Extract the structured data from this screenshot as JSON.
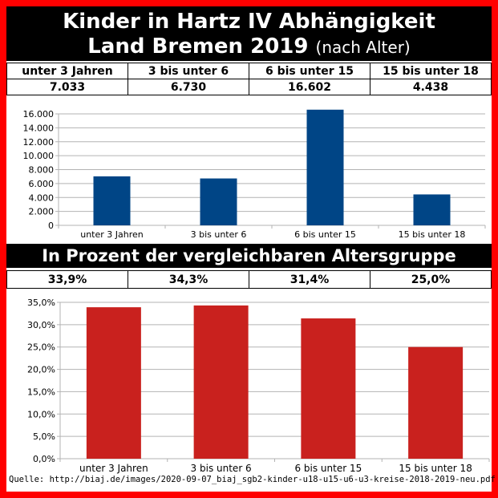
{
  "title": {
    "line1": "Kinder in Hartz IV Abhängigkeit",
    "line2_main": "Land Bremen 2019",
    "line2_sub": "(nach Alter)"
  },
  "section2_title": "In Prozent der vergleichbaren Altersgruppe",
  "table1": {
    "headers": [
      "unter 3 Jahren",
      "3 bis unter 6",
      "6 bis unter 15",
      "15 bis unter 18"
    ],
    "values": [
      "7.033",
      "6.730",
      "16.602",
      "4.438"
    ]
  },
  "table2": {
    "values": [
      "33,9%",
      "34,3%",
      "31,4%",
      "25,0%"
    ]
  },
  "colors": {
    "frame": "#ff0000",
    "header_bg": "#000000",
    "bar_blue": "#004586",
    "bar_red": "#c9211e"
  },
  "source": "Quelle: http://biaj.de/images/2020-09-07_biaj_sgb2-kinder-u18-u15-u6-u3-kreise-2018-2019-neu.pdf",
  "chart_data": [
    {
      "type": "bar",
      "categories": [
        "unter 3 Jahren",
        "3 bis unter 6",
        "6 bis unter 15",
        "15 bis unter 18"
      ],
      "values": [
        7033,
        6730,
        16602,
        4438
      ],
      "ylim": [
        0,
        16000
      ],
      "yticks": [
        0,
        2000,
        4000,
        6000,
        8000,
        10000,
        12000,
        14000,
        16000
      ],
      "ytick_labels": [
        "0",
        "2.000",
        "4.000",
        "6.000",
        "8.000",
        "10.000",
        "12.000",
        "14.000",
        "16.000"
      ],
      "grid": true,
      "color": "#004586"
    },
    {
      "type": "bar",
      "categories": [
        "unter 3 Jahren",
        "3 bis unter 6",
        "6 bis unter 15",
        "15 bis unter 18"
      ],
      "values": [
        33.9,
        34.3,
        31.4,
        25.0
      ],
      "ylim": [
        0,
        35
      ],
      "yticks": [
        0,
        5,
        10,
        15,
        20,
        25,
        30,
        35
      ],
      "ytick_labels": [
        "0,0%",
        "5,0%",
        "10,0%",
        "15,0%",
        "20,0%",
        "25,0%",
        "30,0%",
        "35,0%"
      ],
      "grid": true,
      "color": "#c9211e"
    }
  ]
}
